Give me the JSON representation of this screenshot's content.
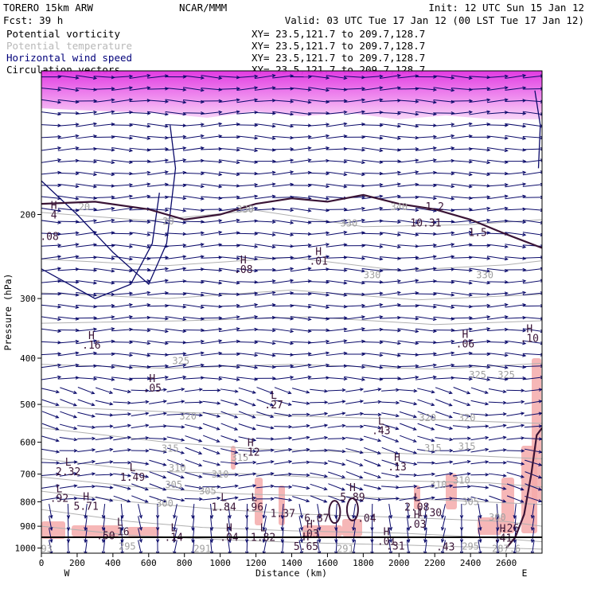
{
  "header": {
    "model": "TORERO  15km ARW",
    "center": "NCAR/MMM",
    "init": "Init: 12 UTC Sun 15 Jan 12",
    "fcst": "Fcst:   39 h",
    "valid": "Valid: 03 UTC Tue 17 Jan 12 (00 LST Tue 17 Jan 12)"
  },
  "fields": [
    {
      "label": "Potential vorticity",
      "xy": "XY=  23.5,121.7 to 209.7,128.7",
      "color": "#000000"
    },
    {
      "label": "Potential temperature",
      "xy": "XY=  23.5,121.7 to 209.7,128.7",
      "color": "#b8b8b8"
    },
    {
      "label": "Horizontal wind speed",
      "xy": "XY=  23.5,121.7 to 209.7,128.7",
      "color": "#00007a"
    },
    {
      "label": "Circulation vectors",
      "xy": "XY=  23.5,121.7 to 209.7,128.7",
      "color": "#000000"
    }
  ],
  "colors": {
    "magenta": "#e030e0",
    "pink": "#f4aaaa",
    "wind": "#0a0a6a",
    "pv": "#3a1436",
    "theta": "#b0b0b0"
  },
  "chart_data": {
    "type": "cross-section",
    "xlabel": "Distance (km)",
    "ylabel": "Pressure (hPa)",
    "xlim": [
      0,
      2800
    ],
    "ylim": [
      1025,
      100
    ],
    "y_scale": "log",
    "xticks": [
      0,
      200,
      400,
      600,
      800,
      1000,
      1200,
      1400,
      1600,
      1800,
      2000,
      2200,
      2400,
      2600
    ],
    "yticks": [
      200,
      300,
      400,
      500,
      600,
      700,
      800,
      900,
      1000
    ],
    "end_labels": {
      "left": "W",
      "right": "E"
    },
    "theta_labels": [
      {
        "x": 240,
        "p": 196,
        "t": "20"
      },
      {
        "x": 710,
        "p": 210,
        "t": "20"
      },
      {
        "x": 1140,
        "p": 198,
        "t": "330"
      },
      {
        "x": 1720,
        "p": 212,
        "t": "330"
      },
      {
        "x": 2000,
        "p": 196,
        "t": "340"
      },
      {
        "x": 2480,
        "p": 272,
        "t": "330"
      },
      {
        "x": 1850,
        "p": 272,
        "t": "330"
      },
      {
        "x": 780,
        "p": 412,
        "t": "325"
      },
      {
        "x": 2440,
        "p": 440,
        "t": "325"
      },
      {
        "x": 2600,
        "p": 440,
        "t": "325"
      },
      {
        "x": 820,
        "p": 538,
        "t": "320"
      },
      {
        "x": 2160,
        "p": 542,
        "t": "320"
      },
      {
        "x": 2380,
        "p": 542,
        "t": "320"
      },
      {
        "x": 720,
        "p": 628,
        "t": "315"
      },
      {
        "x": 1110,
        "p": 656,
        "t": "315"
      },
      {
        "x": 2190,
        "p": 627,
        "t": "315"
      },
      {
        "x": 2380,
        "p": 622,
        "t": "315"
      },
      {
        "x": 760,
        "p": 690,
        "t": "310"
      },
      {
        "x": 1000,
        "p": 712,
        "t": "310"
      },
      {
        "x": 2350,
        "p": 733,
        "t": "310"
      },
      {
        "x": 740,
        "p": 748,
        "t": "305"
      },
      {
        "x": 930,
        "p": 772,
        "t": "305"
      },
      {
        "x": 2220,
        "p": 748,
        "t": "310"
      },
      {
        "x": 2400,
        "p": 812,
        "t": "305"
      },
      {
        "x": 690,
        "p": 818,
        "t": "300"
      },
      {
        "x": 2550,
        "p": 876,
        "t": "300"
      },
      {
        "x": 480,
        "p": 1008,
        "t": "295"
      },
      {
        "x": 2400,
        "p": 1008,
        "t": "295"
      },
      {
        "x": 1700,
        "p": 1020,
        "t": "291"
      },
      {
        "x": 900,
        "p": 1020,
        "t": "291"
      },
      {
        "x": 30,
        "p": 1020,
        "t": "93"
      },
      {
        "x": 2600,
        "p": 1020,
        "t": "287.6"
      }
    ],
    "extrema": [
      {
        "x": 70,
        "p": 204,
        "k": "H",
        "v": "4"
      },
      {
        "x": 45,
        "p": 226,
        "k": "",
        "v": ".08"
      },
      {
        "x": 1550,
        "p": 255,
        "k": "H",
        "v": ".01"
      },
      {
        "x": 1130,
        "p": 265,
        "k": "H",
        "v": ".08"
      },
      {
        "x": 2150,
        "p": 212,
        "k": "",
        "v": "10.31"
      },
      {
        "x": 2200,
        "p": 196,
        "k": "",
        "v": "1.2"
      },
      {
        "x": 2440,
        "p": 222,
        "k": "",
        "v": "1.5"
      },
      {
        "x": 280,
        "p": 382,
        "k": "H",
        "v": ".16"
      },
      {
        "x": 620,
        "p": 470,
        "k": "H",
        "v": ".05"
      },
      {
        "x": 2370,
        "p": 380,
        "k": "H",
        "v": ".06"
      },
      {
        "x": 2730,
        "p": 370,
        "k": "H",
        "v": ".10"
      },
      {
        "x": 1300,
        "p": 510,
        "k": "L",
        "v": ".27"
      },
      {
        "x": 1900,
        "p": 577,
        "k": "L",
        "v": ".43"
      },
      {
        "x": 1170,
        "p": 640,
        "k": "H",
        "v": ".12"
      },
      {
        "x": 1990,
        "p": 688,
        "k": "H",
        "v": ".13"
      },
      {
        "x": 150,
        "p": 704,
        "k": "L",
        "v": "2.32"
      },
      {
        "x": 510,
        "p": 722,
        "k": "L",
        "v": "1.49"
      },
      {
        "x": 100,
        "p": 800,
        "k": "L",
        "v": ".92"
      },
      {
        "x": 250,
        "p": 832,
        "k": "H",
        "v": "5.71"
      },
      {
        "x": 1020,
        "p": 834,
        "k": "L",
        "v": "1.84"
      },
      {
        "x": 1190,
        "p": 834,
        "k": "L",
        "v": ".96"
      },
      {
        "x": 1350,
        "p": 860,
        "k": "",
        "v": "1.37"
      },
      {
        "x": 1740,
        "p": 795,
        "k": "H",
        "v": "5.89"
      },
      {
        "x": 2100,
        "p": 834,
        "k": "L",
        "v": "2.08"
      },
      {
        "x": 2170,
        "p": 858,
        "k": "",
        "v": "1.30"
      },
      {
        "x": 1540,
        "p": 880,
        "k": "",
        "v": "6.87"
      },
      {
        "x": 1820,
        "p": 880,
        "k": "",
        "v": ".04"
      },
      {
        "x": 2100,
        "p": 906,
        "k": "H",
        "v": ".03"
      },
      {
        "x": 440,
        "p": 940,
        "k": "L",
        "v": ".16"
      },
      {
        "x": 360,
        "p": 958,
        "k": "",
        "v": ".50"
      },
      {
        "x": 740,
        "p": 965,
        "k": "L",
        "v": ".14"
      },
      {
        "x": 1050,
        "p": 965,
        "k": "H",
        "v": ".04"
      },
      {
        "x": 1240,
        "p": 965,
        "k": "L",
        "v": "1.82"
      },
      {
        "x": 1500,
        "p": 950,
        "k": "H",
        "v": ".03"
      },
      {
        "x": 1930,
        "p": 985,
        "k": "H",
        "v": ".01"
      },
      {
        "x": 1980,
        "p": 1008,
        "k": "",
        "v": ".31"
      },
      {
        "x": 2260,
        "p": 1012,
        "k": "",
        "v": ".43"
      },
      {
        "x": 2580,
        "p": 970,
        "k": "H",
        "v": ".41"
      },
      {
        "x": 2620,
        "p": 924,
        "k": "",
        "v": ".26"
      },
      {
        "x": 1480,
        "p": 1010,
        "k": "H",
        "v": "5.65"
      }
    ]
  }
}
